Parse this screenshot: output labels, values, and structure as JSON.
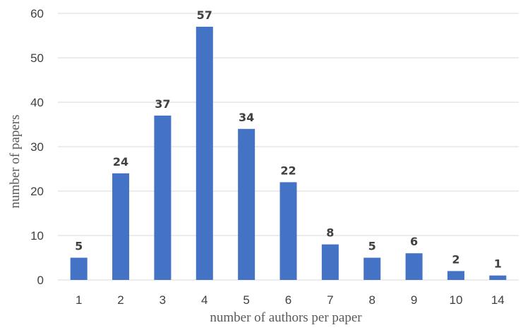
{
  "chart_data": {
    "type": "bar",
    "categories": [
      "1",
      "2",
      "3",
      "4",
      "5",
      "6",
      "7",
      "8",
      "9",
      "10",
      "14"
    ],
    "values": [
      5,
      24,
      37,
      57,
      34,
      22,
      8,
      5,
      6,
      2,
      1
    ],
    "data_labels": [
      "5",
      "24",
      "37",
      "57",
      "34",
      "22",
      "8",
      "5",
      "6",
      "2",
      "1"
    ],
    "title": "",
    "xlabel": "number of authors per paper",
    "ylabel": "number of papers",
    "ylim": [
      0,
      60
    ],
    "yticks": [
      "0",
      "10",
      "20",
      "30",
      "40",
      "50",
      "60"
    ],
    "grid": true,
    "legend": "none",
    "bar_color": "#4472c4"
  }
}
